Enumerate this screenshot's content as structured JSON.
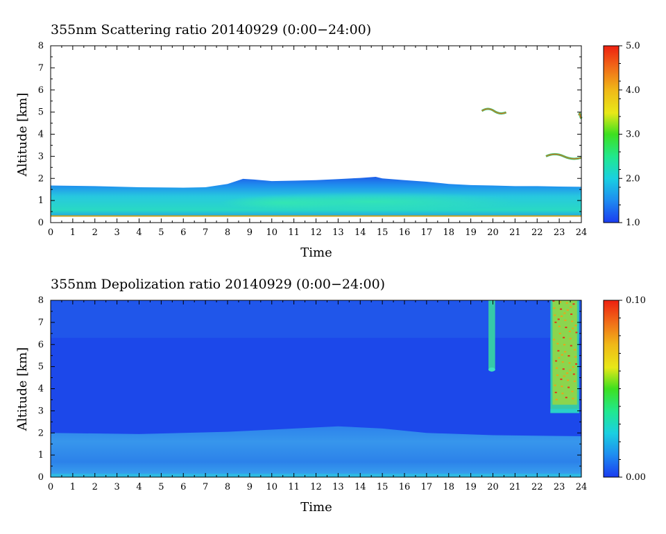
{
  "chart_data": [
    {
      "type": "heatmap",
      "title": "355nm Scattering ratio  20140929 (0:00−24:00)",
      "xlabel": "Time",
      "ylabel": "Altitude [km]",
      "xlim": [
        0,
        24
      ],
      "ylim": [
        0,
        8
      ],
      "x_ticks": [
        "0",
        "1",
        "2",
        "3",
        "4",
        "5",
        "6",
        "7",
        "8",
        "9",
        "10",
        "11",
        "12",
        "13",
        "14",
        "15",
        "16",
        "17",
        "18",
        "19",
        "20",
        "21",
        "22",
        "23",
        "24"
      ],
      "y_ticks": [
        "0",
        "1",
        "2",
        "3",
        "4",
        "5",
        "6",
        "7",
        "8"
      ],
      "colorbar": {
        "min": 1.0,
        "max": 5.0,
        "ticks": [
          "1.0",
          "2.0",
          "3.0",
          "4.0",
          "5.0"
        ]
      },
      "boundary_layer_top_km": [
        [
          0,
          1.68
        ],
        [
          2,
          1.65
        ],
        [
          4,
          1.6
        ],
        [
          6,
          1.58
        ],
        [
          7,
          1.6
        ],
        [
          8,
          1.75
        ],
        [
          8.7,
          1.98
        ],
        [
          9.2,
          1.95
        ],
        [
          10,
          1.88
        ],
        [
          11,
          1.9
        ],
        [
          12,
          1.92
        ],
        [
          13,
          1.97
        ],
        [
          14,
          2.02
        ],
        [
          14.7,
          2.07
        ],
        [
          15,
          2.0
        ],
        [
          16,
          1.92
        ],
        [
          17,
          1.85
        ],
        [
          18,
          1.75
        ],
        [
          19,
          1.7
        ],
        [
          20,
          1.68
        ],
        [
          21,
          1.65
        ],
        [
          22,
          1.65
        ],
        [
          23,
          1.63
        ],
        [
          24,
          1.62
        ]
      ],
      "cloud_features": [
        {
          "time_start": 19.5,
          "time_end": 20.6,
          "altitude_km": 5.05
        },
        {
          "time_start": 22.4,
          "time_end": 24.0,
          "altitude_km": 3.0
        },
        {
          "time_start": 23.9,
          "time_end": 24.0,
          "altitude_km": 4.85
        }
      ]
    },
    {
      "type": "heatmap",
      "title": "355nm Depolization ratio  20140929 (0:00−24:00)",
      "xlabel": "Time",
      "ylabel": "Altitude [km]",
      "xlim": [
        0,
        24
      ],
      "ylim": [
        0,
        8
      ],
      "x_ticks": [
        "0",
        "1",
        "2",
        "3",
        "4",
        "5",
        "6",
        "7",
        "8",
        "9",
        "10",
        "11",
        "12",
        "13",
        "14",
        "15",
        "16",
        "17",
        "18",
        "19",
        "20",
        "21",
        "22",
        "23",
        "24"
      ],
      "y_ticks": [
        "0",
        "1",
        "2",
        "3",
        "4",
        "5",
        "6",
        "7",
        "8"
      ],
      "colorbar": {
        "min": 0.0,
        "max": 0.1,
        "ticks": [
          "0.00",
          "0.10"
        ]
      },
      "boundary_layer_top_km": [
        [
          0,
          2.0
        ],
        [
          4,
          1.95
        ],
        [
          8,
          2.05
        ],
        [
          10,
          2.15
        ],
        [
          13,
          2.3
        ],
        [
          15,
          2.2
        ],
        [
          17,
          2.0
        ],
        [
          20,
          1.9
        ],
        [
          24,
          1.85
        ]
      ],
      "high_depol_features": [
        {
          "time_start": 19.8,
          "time_end": 20.1,
          "altitude_start_km": 4.9,
          "altitude_end_km": 8.0
        },
        {
          "time_start": 22.6,
          "time_end": 23.9,
          "altitude_start_km": 2.9,
          "altitude_end_km": 8.0
        }
      ]
    }
  ]
}
